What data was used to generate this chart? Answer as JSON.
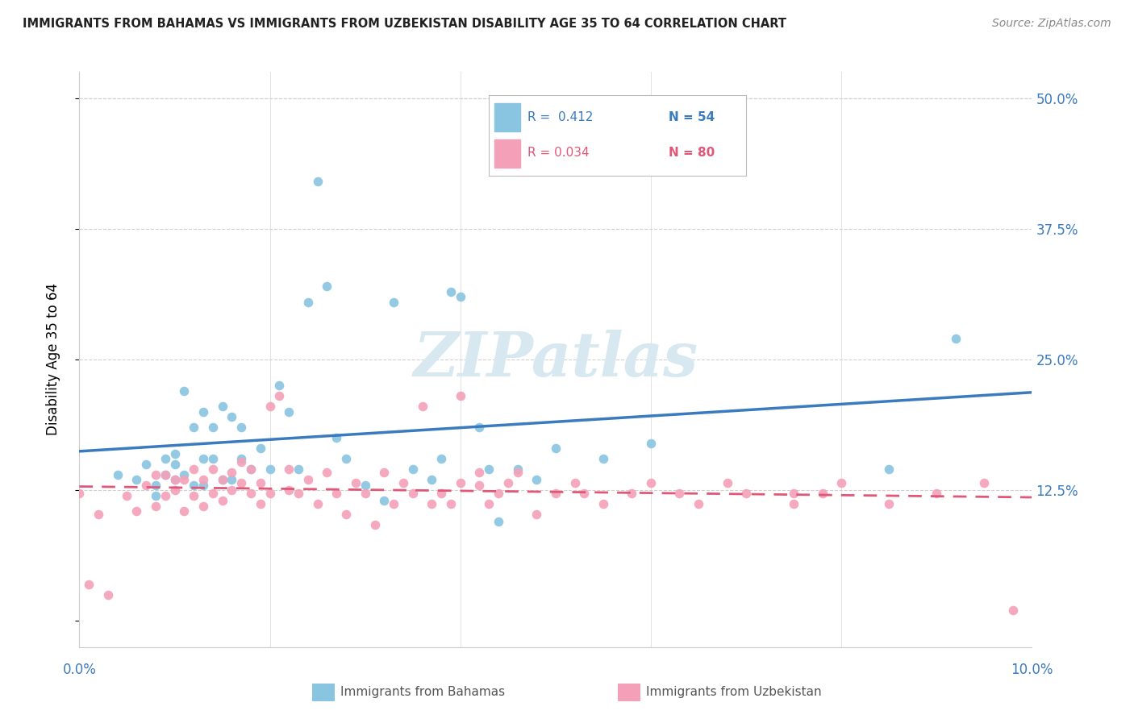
{
  "title": "IMMIGRANTS FROM BAHAMAS VS IMMIGRANTS FROM UZBEKISTAN DISABILITY AGE 35 TO 64 CORRELATION CHART",
  "source": "Source: ZipAtlas.com",
  "ylabel": "Disability Age 35 to 64",
  "color_blue": "#89c4e1",
  "color_pink": "#f4a0b8",
  "color_blue_dark": "#3a7abf",
  "color_pink_dark": "#e05878",
  "xlim": [
    0.0,
    0.1
  ],
  "ylim": [
    -0.025,
    0.525
  ],
  "ytick_vals": [
    0.0,
    0.125,
    0.25,
    0.375,
    0.5
  ],
  "ytick_labels": [
    "",
    "12.5%",
    "25.0%",
    "37.5%",
    "50.0%"
  ],
  "r_blue": "0.412",
  "n_blue": "54",
  "r_pink": "0.034",
  "n_pink": "80",
  "bahamas_x": [
    0.004,
    0.006,
    0.007,
    0.008,
    0.008,
    0.009,
    0.009,
    0.01,
    0.01,
    0.01,
    0.011,
    0.011,
    0.012,
    0.012,
    0.013,
    0.013,
    0.013,
    0.014,
    0.014,
    0.015,
    0.015,
    0.016,
    0.016,
    0.017,
    0.017,
    0.018,
    0.019,
    0.02,
    0.021,
    0.022,
    0.023,
    0.024,
    0.025,
    0.026,
    0.027,
    0.028,
    0.03,
    0.032,
    0.033,
    0.035,
    0.037,
    0.038,
    0.039,
    0.04,
    0.042,
    0.043,
    0.044,
    0.046,
    0.048,
    0.05,
    0.055,
    0.06,
    0.085,
    0.092
  ],
  "bahamas_y": [
    0.14,
    0.135,
    0.15,
    0.12,
    0.13,
    0.155,
    0.14,
    0.135,
    0.16,
    0.15,
    0.22,
    0.14,
    0.185,
    0.13,
    0.155,
    0.2,
    0.13,
    0.155,
    0.185,
    0.135,
    0.205,
    0.195,
    0.135,
    0.155,
    0.185,
    0.145,
    0.165,
    0.145,
    0.225,
    0.2,
    0.145,
    0.305,
    0.42,
    0.32,
    0.175,
    0.155,
    0.13,
    0.115,
    0.305,
    0.145,
    0.135,
    0.155,
    0.315,
    0.31,
    0.185,
    0.145,
    0.095,
    0.145,
    0.135,
    0.165,
    0.155,
    0.17,
    0.145,
    0.27
  ],
  "uzbek_x": [
    0.001,
    0.003,
    0.005,
    0.006,
    0.007,
    0.008,
    0.008,
    0.009,
    0.009,
    0.01,
    0.01,
    0.011,
    0.011,
    0.012,
    0.012,
    0.013,
    0.013,
    0.014,
    0.014,
    0.015,
    0.015,
    0.016,
    0.016,
    0.017,
    0.017,
    0.018,
    0.018,
    0.019,
    0.019,
    0.02,
    0.02,
    0.021,
    0.022,
    0.022,
    0.023,
    0.024,
    0.025,
    0.026,
    0.027,
    0.028,
    0.029,
    0.03,
    0.031,
    0.032,
    0.033,
    0.034,
    0.035,
    0.036,
    0.037,
    0.038,
    0.039,
    0.04,
    0.042,
    0.043,
    0.044,
    0.045,
    0.046,
    0.048,
    0.05,
    0.052,
    0.053,
    0.055,
    0.058,
    0.06,
    0.063,
    0.065,
    0.068,
    0.07,
    0.075,
    0.078,
    0.08,
    0.085,
    0.09,
    0.095,
    0.098,
    0.04,
    0.042,
    0.0,
    0.002,
    0.075
  ],
  "uzbek_y": [
    0.035,
    0.025,
    0.12,
    0.105,
    0.13,
    0.11,
    0.14,
    0.12,
    0.14,
    0.125,
    0.135,
    0.105,
    0.135,
    0.12,
    0.145,
    0.11,
    0.135,
    0.122,
    0.145,
    0.115,
    0.135,
    0.142,
    0.125,
    0.132,
    0.152,
    0.122,
    0.145,
    0.112,
    0.132,
    0.122,
    0.205,
    0.215,
    0.125,
    0.145,
    0.122,
    0.135,
    0.112,
    0.142,
    0.122,
    0.102,
    0.132,
    0.122,
    0.092,
    0.142,
    0.112,
    0.132,
    0.122,
    0.205,
    0.112,
    0.122,
    0.112,
    0.132,
    0.142,
    0.112,
    0.122,
    0.132,
    0.142,
    0.102,
    0.122,
    0.132,
    0.122,
    0.112,
    0.122,
    0.132,
    0.122,
    0.112,
    0.132,
    0.122,
    0.112,
    0.122,
    0.132,
    0.112,
    0.122,
    0.132,
    0.01,
    0.215,
    0.13,
    0.122,
    0.102,
    0.122
  ]
}
